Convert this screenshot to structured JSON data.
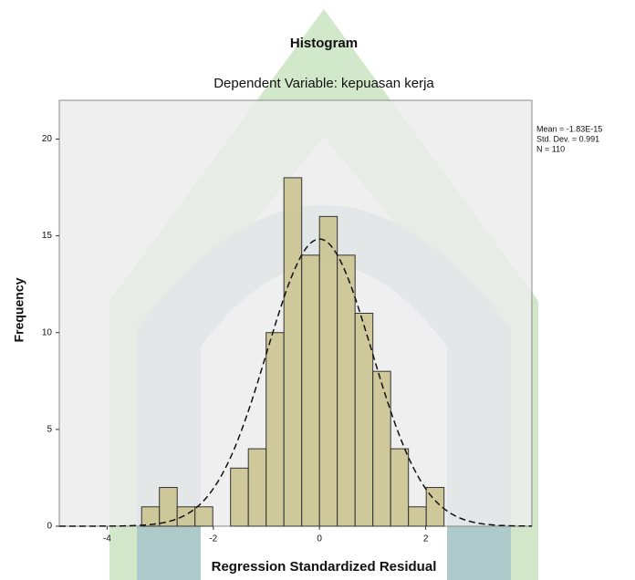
{
  "chart_data": {
    "type": "histogram",
    "title": "Histogram",
    "subtitle": "Dependent Variable: kepuasan kerja",
    "x_label": "Regression Standardized Residual",
    "y_label": "Frequency",
    "bins": [
      -3.35,
      -3.015,
      -2.68,
      -2.345,
      -2.01,
      -1.675,
      -1.34,
      -1.005,
      -0.67,
      -0.335,
      0,
      0.335,
      0.67,
      1.005,
      1.34,
      1.675,
      2.01,
      2.345
    ],
    "values": [
      1,
      2,
      1,
      1,
      0,
      3,
      4,
      10,
      18,
      14,
      16,
      14,
      11,
      8,
      4,
      1,
      2
    ],
    "color": "#c9c18c",
    "xlim": [
      -4.9,
      4.0
    ],
    "xticks": [
      -4,
      -2,
      0,
      2
    ],
    "ylim": [
      0,
      22
    ],
    "yticks": [
      0,
      5,
      10,
      15,
      20
    ],
    "stats": [
      {
        "value": -1.83e-15,
        "label": "Mean = -1.83E-15"
      },
      {
        "value": 0.991,
        "label": "Std. Dev. = 0.991"
      },
      {
        "value": 110,
        "label": "N = 110"
      }
    ]
  }
}
